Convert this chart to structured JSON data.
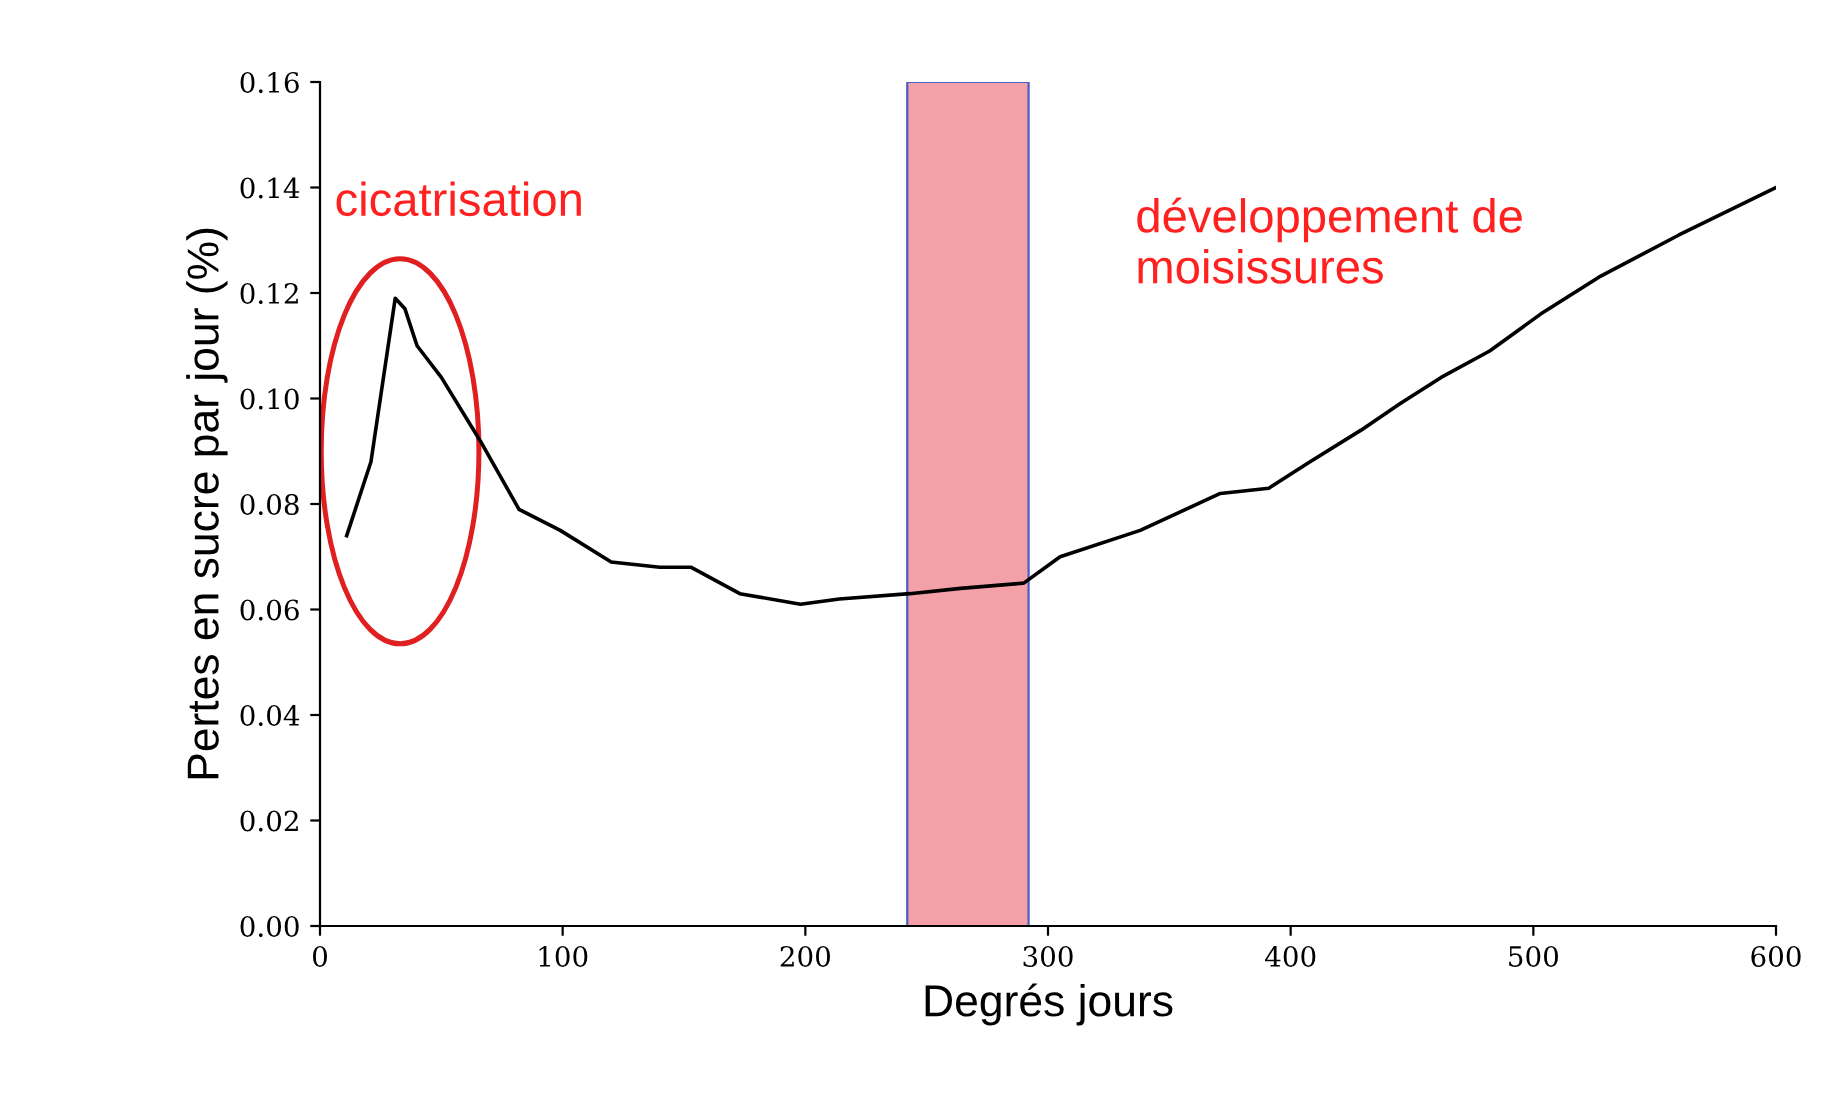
{
  "chart_data": {
    "type": "line",
    "xlabel": "Degrés jours",
    "ylabel": "Pertes en sucre par jour (%)",
    "x": [
      11,
      21,
      31,
      35,
      40,
      50,
      66,
      82,
      99,
      120,
      140,
      153,
      173,
      198,
      214,
      243,
      264,
      290,
      305,
      338,
      371,
      391,
      408,
      429,
      445,
      462,
      482,
      503,
      527,
      560,
      600
    ],
    "series": [
      {
        "color": "#000000",
        "values": [
          0.074,
          0.088,
          0.119,
          0.117,
          0.11,
          0.104,
          0.092,
          0.079,
          0.075,
          0.069,
          0.068,
          0.068,
          0.063,
          0.061,
          0.062,
          0.063,
          0.064,
          0.065,
          0.07,
          0.075,
          0.082,
          0.083,
          0.088,
          0.094,
          0.099,
          0.104,
          0.109,
          0.116,
          0.123,
          0.131,
          0.14
        ]
      }
    ],
    "xlim": [
      0,
      600
    ],
    "xticks": [
      0,
      100,
      200,
      300,
      400,
      500,
      600
    ],
    "ylim": [
      0,
      0.16
    ],
    "yticks": [
      {
        "value": 0,
        "label": "0.00"
      },
      {
        "value": 0.02,
        "label": "0.02"
      },
      {
        "value": 0.04,
        "label": "0.04"
      },
      {
        "value": 0.06,
        "label": "0.06"
      },
      {
        "value": 0.08,
        "label": "0.08"
      },
      {
        "value": 0.1,
        "label": "0.10"
      },
      {
        "value": 0.12,
        "label": "0.12"
      },
      {
        "value": 0.14,
        "label": "0.14"
      },
      {
        "value": 0.16,
        "label": "0.16"
      }
    ],
    "bands": [
      {
        "axis": "x",
        "from": 242,
        "to": 292,
        "color": "#f4a0a8"
      }
    ],
    "annotations": [
      "cicatrisation",
      "développement de\nmoisissures"
    ],
    "grid": false,
    "legend": false,
    "marker": "none",
    "line_style": "solid"
  }
}
